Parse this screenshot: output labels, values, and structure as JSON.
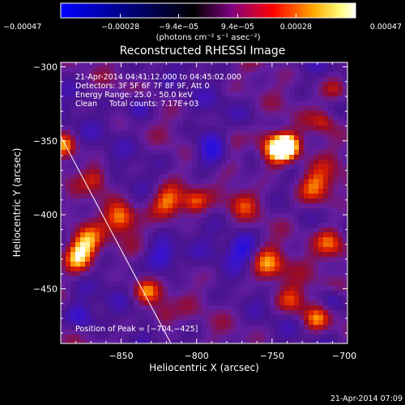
{
  "chart_data": {
    "type": "heatmap",
    "title": "Reconstructed RHESSI Image",
    "xlabel": "Heliocentric X (arcsec)",
    "ylabel": "Heliocentric Y (arcsec)",
    "xlim": [
      -890,
      -700
    ],
    "ylim": [
      -487,
      -297
    ],
    "x_ticks": [
      -850,
      -800,
      -750,
      -700
    ],
    "x_tick_labels": [
      "−850",
      "−800",
      "−750",
      "−700"
    ],
    "y_ticks": [
      -300,
      -350,
      -400,
      -450
    ],
    "y_tick_labels": [
      "−300",
      "−350",
      "−400",
      "−450"
    ],
    "colorbar": {
      "min": -0.00047,
      "max": 0.00047,
      "ticks": [
        -0.00047,
        -0.00028,
        -9.4e-05,
        9.4e-05,
        0.00028,
        0.00047
      ],
      "tick_labels": [
        "−0.00047",
        "−0.00028",
        "−9.4e−05",
        "9.4e−05",
        "0.00028",
        "0.00047"
      ],
      "unit_label": "(photons cm⁻² s⁻¹ asec⁻²)",
      "colors": [
        "#0000ff",
        "#000000",
        "#800080",
        "#ff0000",
        "#ffaa00",
        "#ffff80",
        "#ffffff"
      ]
    },
    "annotations": [
      "21-Apr-2014 04:41:12.000 to 04:45:02.000",
      "Detectors: 3F 5F 6F 7F 8F 9F, Att 0",
      "Energy Range: 25.0 - 50.0 keV",
      "Clean     Total counts: 7.17E+03"
    ],
    "peak_label": "Position of Peak = [−704,−425]",
    "peak": [
      -704,
      -425
    ],
    "limb_line": [
      [
        -890,
        -347
      ],
      [
        -817,
        -487
      ]
    ],
    "timestamp": "21-Apr-2014 07:09"
  }
}
